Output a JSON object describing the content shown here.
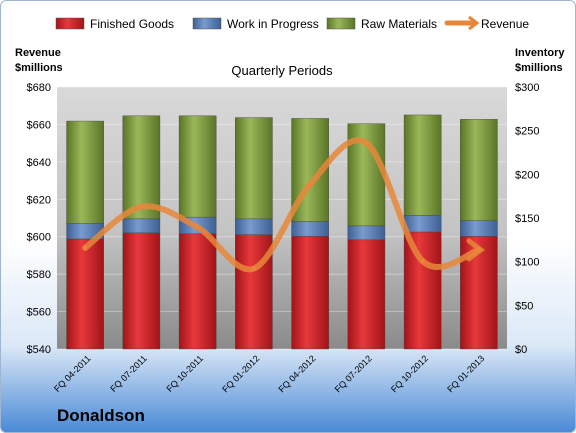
{
  "legend": [
    "Finished Goods",
    "Work in Progress",
    "Raw Materials",
    "Revenue"
  ],
  "left_axis_label_line1": "Revenue",
  "left_axis_label_line2": "$millions",
  "right_axis_label_line1": "Inventory",
  "right_axis_label_line2": "$millions",
  "company": "Donaldson",
  "colors": {
    "finished_goods": "#d8262b",
    "work_in_progress": "#5a7fb8",
    "raw_materials": "#7a9a3a",
    "revenue": "#e8873a"
  },
  "chart_data": {
    "type": "bar",
    "title": "Quarterly Periods",
    "stacked": true,
    "categories": [
      "FQ 04-2011",
      "FQ 07-2011",
      "FQ 10-2011",
      "FQ 01-2012",
      "FQ 04-2012",
      "FQ 07-2012",
      "FQ 10-2012",
      "FQ 01-2013"
    ],
    "series": [
      {
        "name": "Finished Goods",
        "axis": "right",
        "values": [
          126,
          133,
          132,
          131,
          129,
          125,
          134,
          129
        ]
      },
      {
        "name": "Work in Progress",
        "axis": "right",
        "values": [
          18,
          16,
          19,
          18,
          17,
          16,
          19,
          18
        ]
      },
      {
        "name": "Raw Materials",
        "axis": "right",
        "values": [
          117,
          118,
          116,
          116,
          118,
          117,
          115,
          116
        ]
      },
      {
        "name": "Revenue",
        "axis": "left",
        "type": "line",
        "values": [
          594,
          616,
          605,
          583,
          628,
          650,
          587,
          593
        ]
      }
    ],
    "left_axis": {
      "label": "Revenue $millions",
      "range": [
        540,
        680
      ],
      "ticks": [
        "$540",
        "$560",
        "$580",
        "$600",
        "$620",
        "$640",
        "$660",
        "$680"
      ]
    },
    "right_axis": {
      "label": "Inventory $millions",
      "range": [
        0,
        300
      ],
      "ticks": [
        "$0",
        "$50",
        "$100",
        "$150",
        "$200",
        "$250",
        "$300"
      ]
    },
    "legend_position": "top"
  }
}
